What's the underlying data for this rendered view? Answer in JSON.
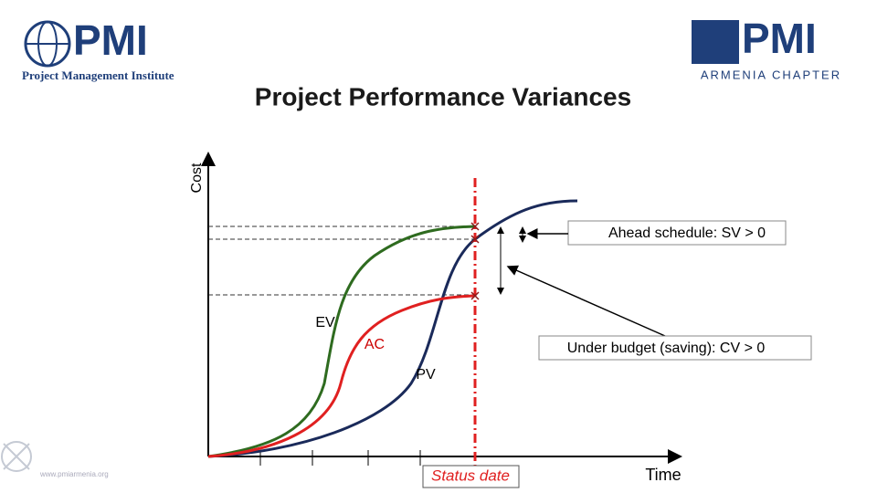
{
  "header": {
    "left_logo": {
      "mark": "PMI",
      "name": "Project Management Institute"
    },
    "right_logo": {
      "mark": "PMI",
      "chapter": "ARMENIA CHAPTER"
    },
    "title": "Project Performance Variances"
  },
  "diagram": {
    "y_axis_label": "Cost",
    "x_axis_label": "Time",
    "curves": {
      "ev": "EV",
      "ac": "AC",
      "pv": "PV"
    },
    "status_date": "Status date",
    "callouts": {
      "schedule": "Ahead schedule: SV > 0",
      "cost": "Under budget (saving): CV > 0"
    }
  },
  "footer": {
    "url": "www.pmiarmenia.org"
  }
}
